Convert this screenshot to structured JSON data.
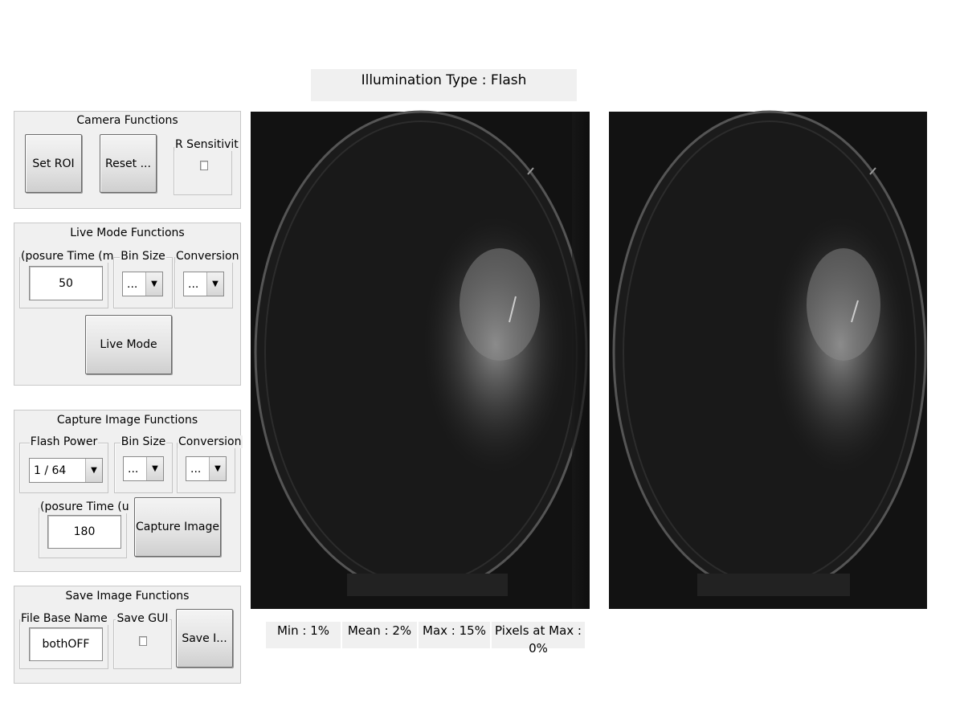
{
  "illumination": {
    "title": "Illumination Type : Flash"
  },
  "camera": {
    "title": "Camera Functions",
    "set_roi_label": "Set ROI",
    "reset_label": "Reset ...",
    "ir_sensitivity_label": "R Sensitivit"
  },
  "live": {
    "title": "Live Mode Functions",
    "exposure_label": "(posure Time (m",
    "exposure_value": "50",
    "bin_size_label": "Bin Size",
    "bin_size_value": "...",
    "conversion_label": "Conversion",
    "conversion_value": "...",
    "live_mode_label": "Live Mode"
  },
  "capture": {
    "title": "Capture Image Functions",
    "flash_power_label": "Flash Power",
    "flash_power_value": "1 / 64",
    "bin_size_label": "Bin Size",
    "bin_size_value": "...",
    "conversion_label": "Conversion",
    "conversion_value": "...",
    "exposure_label": "(posure Time (u",
    "exposure_value": "180",
    "capture_label": "Capture Image"
  },
  "save": {
    "title": "Save Image Functions",
    "file_base_label": "File Base Name",
    "file_base_value": "bothOFF",
    "save_gui_label": "Save GUI",
    "save_image_label": "Save I..."
  },
  "stats": {
    "min": "Min : 1%",
    "mean": "Mean : 2%",
    "max": "Max : 15%",
    "pixels_at_max": "Pixels at Max : 0%"
  },
  "colors": {
    "panel_bg": "#f0f0f0",
    "image_bg": "#141414"
  }
}
